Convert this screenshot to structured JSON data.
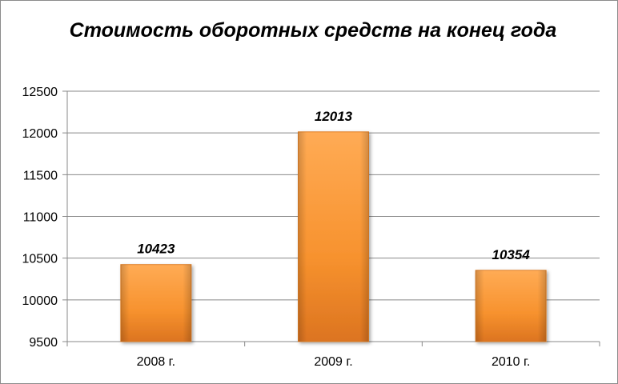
{
  "chart_data": {
    "type": "bar",
    "title": "Стоимость оборотных средств на конец года",
    "categories": [
      "2008 г.",
      "2009 г.",
      "2010 г."
    ],
    "values": [
      10423,
      12013,
      10354
    ],
    "data_labels": [
      "10423",
      "12013",
      "10354"
    ],
    "ylim": [
      9500,
      12500
    ],
    "yticks": [
      9500,
      10000,
      10500,
      11000,
      11500,
      12000,
      12500
    ],
    "xlabel": "",
    "ylabel": "",
    "grid": true,
    "legend": "none",
    "colors": {
      "bar_light": "#ffa64d",
      "bar_mid": "#f7922e",
      "bar_dark": "#d9731c",
      "grid": "#898989"
    }
  }
}
